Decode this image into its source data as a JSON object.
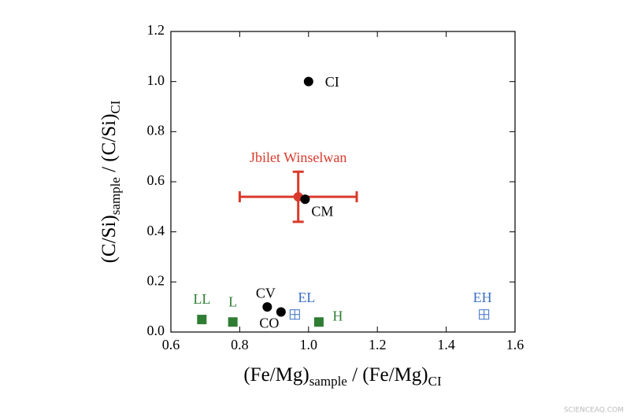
{
  "chart_data": {
    "type": "scatter",
    "x_label": {
      "main1": "(Fe/Mg)",
      "sub1": "sample",
      "main2": " / (Fe/Mg)",
      "sub2": "CI"
    },
    "y_label": {
      "main1": "(C/Si)",
      "sub1": "sample",
      "main2": " / (C/Si)",
      "sub2": "CI"
    },
    "xlim": [
      0.6,
      1.6
    ],
    "ylim": [
      0,
      1.2
    ],
    "xticks": [
      0.6,
      0.8,
      {
        "value": 1,
        "label": "1.0"
      },
      1.2,
      1.4,
      1.6
    ],
    "yticks": [
      {
        "value": 0,
        "label": "0.0"
      },
      0.2,
      0.4,
      0.6,
      0.8,
      {
        "value": 1,
        "label": "1.0"
      },
      1.2
    ],
    "points": [
      {
        "label": "CI",
        "x": 1.0,
        "y": 1.0,
        "color": "#000000",
        "marker": "circle"
      },
      {
        "label": "CV",
        "x": 0.88,
        "y": 0.1,
        "color": "#000000",
        "marker": "circle"
      },
      {
        "label": "CO",
        "x": 0.92,
        "y": 0.08,
        "color": "#000000",
        "marker": "circle"
      },
      {
        "label": "LL",
        "x": 0.69,
        "y": 0.05,
        "color": "#2e7d32",
        "marker": "square"
      },
      {
        "label": "L",
        "x": 0.78,
        "y": 0.04,
        "color": "#2e7d32",
        "marker": "square"
      },
      {
        "label": "H",
        "x": 1.03,
        "y": 0.04,
        "color": "#2e7d32",
        "marker": "square"
      },
      {
        "label": "EL",
        "x": 0.96,
        "y": 0.07,
        "color": "#3a6fc4",
        "marker": "open-square"
      },
      {
        "label": "EH",
        "x": 1.51,
        "y": 0.07,
        "color": "#3a6fc4",
        "marker": "open-square"
      },
      {
        "label": "Jbilet  Winselwan",
        "x": 0.97,
        "y": 0.54,
        "xerr": 0.17,
        "yerr": 0.1,
        "color": "#d93a2b",
        "marker": "circle"
      },
      {
        "label": "CM",
        "x": 0.99,
        "y": 0.53,
        "color": "#000000",
        "marker": "circle"
      }
    ],
    "watermark": "SCIENCEAQ.COM"
  }
}
